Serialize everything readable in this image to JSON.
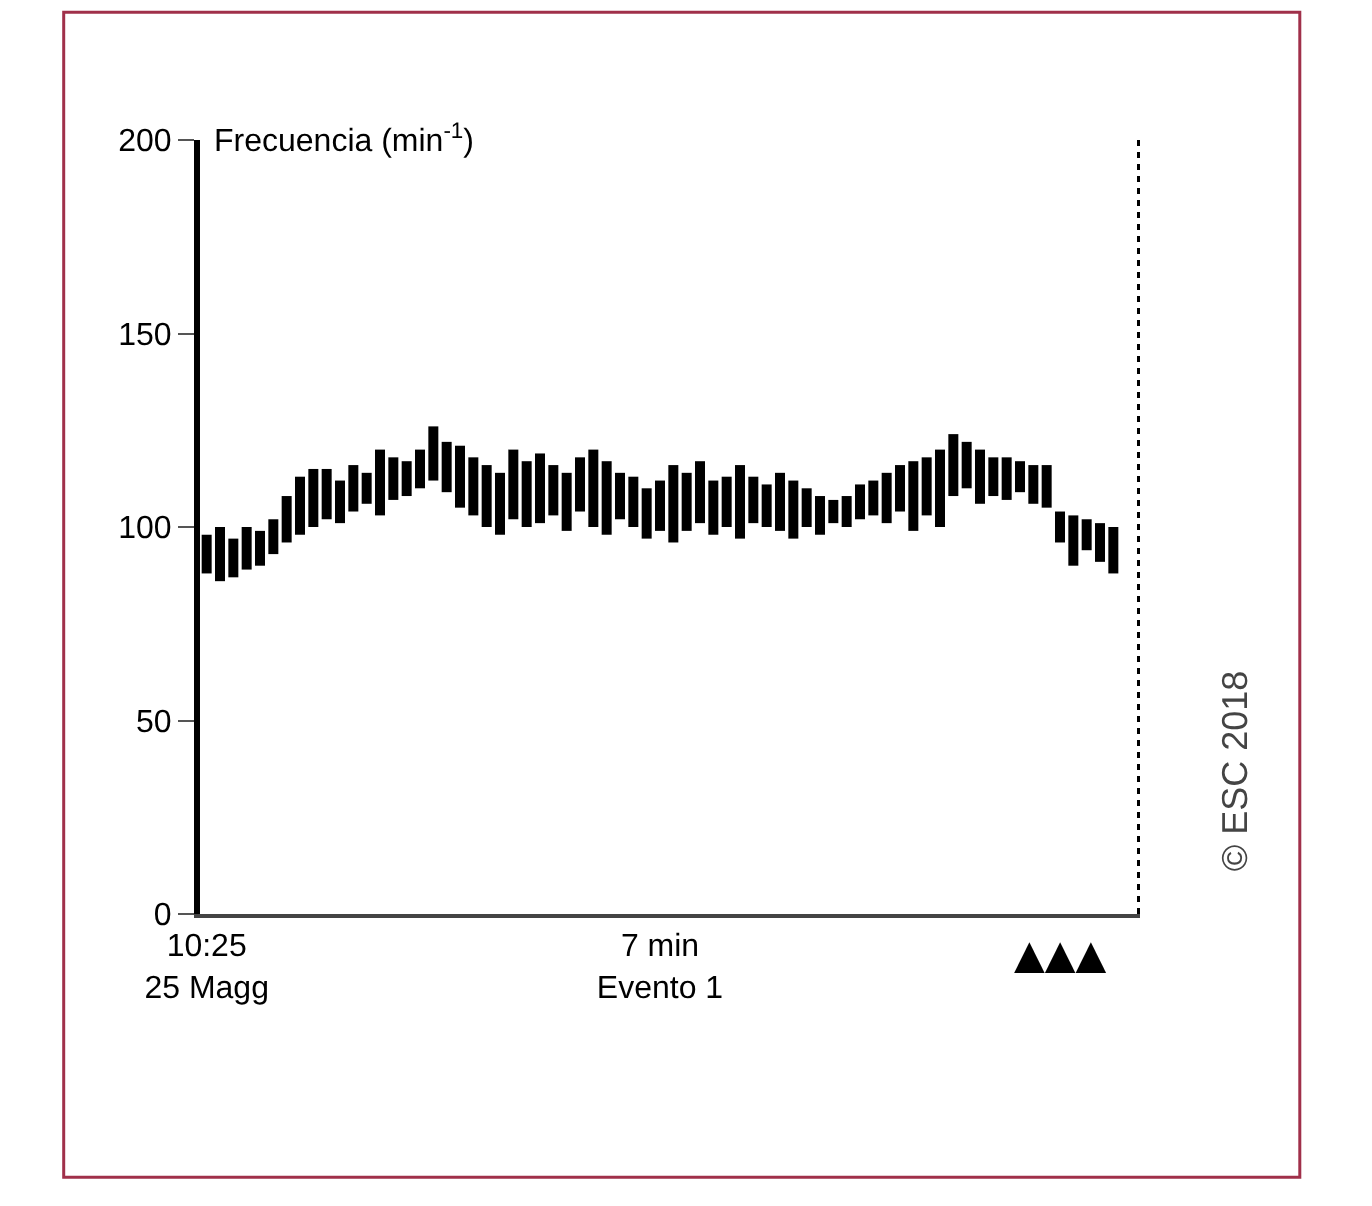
{
  "chart_data": {
    "type": "bar",
    "ylabel": "Frecuencia (min$^{-1}$)",
    "categories": [
      "10:25\n25 Magg",
      null,
      null,
      null,
      null,
      null,
      null,
      null,
      null,
      null,
      null,
      null,
      null,
      null,
      null,
      null,
      null,
      null,
      null,
      null,
      null,
      null,
      null,
      null,
      null,
      null,
      null,
      null,
      null,
      null,
      null,
      null,
      null,
      null,
      "7 min\nEvento 1",
      null,
      null,
      null,
      null,
      null,
      null,
      null,
      null,
      null,
      null,
      null,
      null,
      null,
      null,
      null,
      null,
      null,
      null,
      null,
      null,
      null,
      null,
      null,
      null,
      null,
      null,
      null,
      null,
      null,
      null,
      null,
      null,
      null,
      null
    ],
    "base": [
      88,
      86,
      87,
      89,
      90,
      93,
      96,
      98,
      100,
      102,
      101,
      104,
      106,
      103,
      107,
      108,
      110,
      112,
      109,
      105,
      103,
      100,
      98,
      102,
      100,
      101,
      103,
      99,
      104,
      100,
      98,
      102,
      100,
      97,
      99,
      96,
      99,
      101,
      98,
      100,
      97,
      101,
      100,
      99,
      97,
      100,
      98,
      101,
      100,
      102,
      103,
      101,
      104,
      99,
      103,
      100,
      108,
      110,
      106,
      108,
      107,
      109,
      106,
      105,
      96,
      90,
      94,
      91,
      88
    ],
    "values": [
      10,
      14,
      10,
      11,
      9,
      9,
      12,
      15,
      15,
      13,
      11,
      12,
      8,
      17,
      11,
      9,
      10,
      14,
      13,
      16,
      15,
      16,
      16,
      18,
      17,
      18,
      13,
      15,
      14,
      20,
      19,
      12,
      13,
      13,
      13,
      20,
      15,
      16,
      14,
      13,
      19,
      12,
      11,
      15,
      15,
      10,
      10,
      6,
      8,
      9,
      9,
      13,
      12,
      18,
      15,
      20,
      16,
      12,
      14,
      10,
      11,
      8,
      10,
      11,
      8,
      13,
      8,
      10,
      12
    ],
    "color": "#000000",
    "ylim": [
      0,
      200
    ],
    "yticks": [
      0,
      50,
      100,
      150,
      200
    ],
    "annotations": [
      "▲▲▲",
      "© ESC 2018"
    ]
  }
}
